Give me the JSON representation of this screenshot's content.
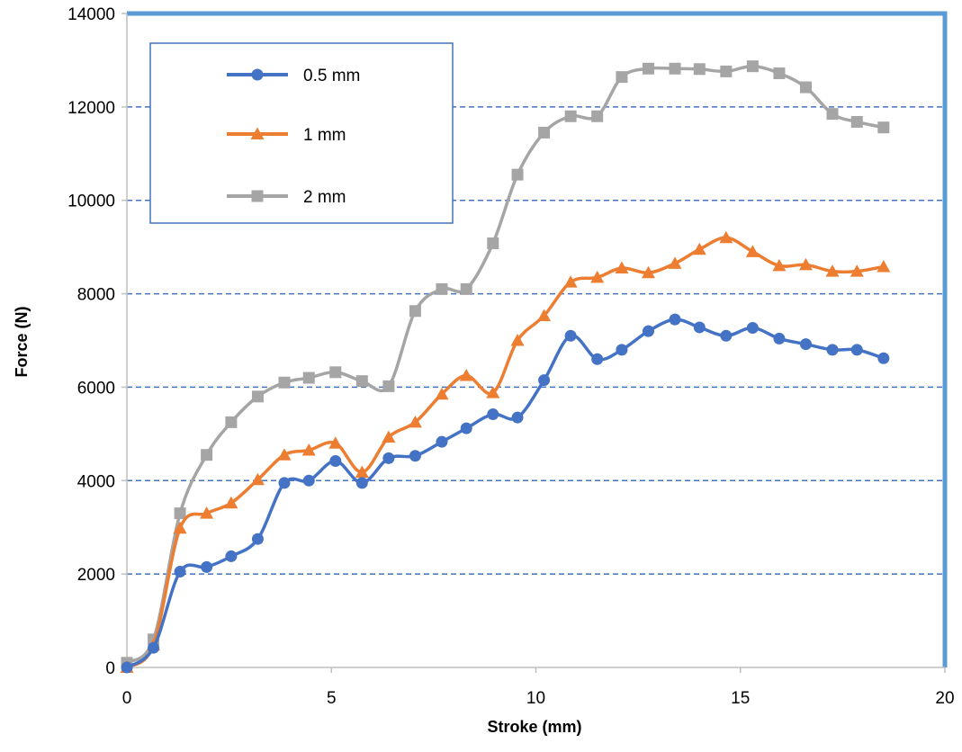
{
  "chart_data": {
    "type": "line",
    "title": "",
    "xlabel": "Stroke (mm)",
    "ylabel": "Force (N)",
    "xlim": [
      0,
      20
    ],
    "ylim": [
      0,
      14000
    ],
    "x_ticks": [
      0,
      5,
      10,
      15,
      20
    ],
    "y_ticks": [
      0,
      2000,
      4000,
      6000,
      8000,
      10000,
      12000,
      14000
    ],
    "grid": "horizontal dashed",
    "legend": "top-left",
    "series": [
      {
        "name": "0.5 mm",
        "color": "#4472C4",
        "marker": "circle",
        "x": [
          0.0,
          0.65,
          1.3,
          1.95,
          2.55,
          3.2,
          3.85,
          4.45,
          5.1,
          5.75,
          6.4,
          7.05,
          7.7,
          8.3,
          8.95,
          9.55,
          10.2,
          10.85,
          11.5,
          12.1,
          12.75,
          13.4,
          14.0,
          14.65,
          15.3,
          15.95,
          16.6,
          17.25,
          17.85,
          18.5
        ],
        "values": [
          0,
          420,
          2050,
          2150,
          2380,
          2750,
          3950,
          4000,
          4420,
          3950,
          4480,
          4530,
          4830,
          5120,
          5420,
          5350,
          6150,
          7100,
          6600,
          6800,
          7200,
          7450,
          7280,
          7100,
          7270,
          7040,
          6920,
          6800,
          6800,
          6620
        ]
      },
      {
        "name": "1 mm",
        "color": "#ED7D31",
        "marker": "triangle",
        "x": [
          0.0,
          0.65,
          1.3,
          1.95,
          2.55,
          3.2,
          3.85,
          4.45,
          5.1,
          5.75,
          6.4,
          7.05,
          7.7,
          8.3,
          8.95,
          9.55,
          10.2,
          10.85,
          11.5,
          12.1,
          12.75,
          13.4,
          14.0,
          14.65,
          15.3,
          15.95,
          16.6,
          17.25,
          17.85,
          18.5
        ],
        "values": [
          0,
          480,
          2980,
          3300,
          3520,
          4020,
          4550,
          4650,
          4800,
          4180,
          4930,
          5250,
          5850,
          6250,
          5880,
          7000,
          7530,
          8250,
          8350,
          8550,
          8450,
          8650,
          8950,
          9200,
          8900,
          8600,
          8620,
          8480,
          8480,
          8580
        ]
      },
      {
        "name": "2 mm",
        "color": "#A5A5A5",
        "marker": "square",
        "x": [
          0.0,
          0.65,
          1.3,
          1.95,
          2.55,
          3.2,
          3.85,
          4.45,
          5.1,
          5.75,
          6.4,
          7.05,
          7.7,
          8.3,
          8.95,
          9.55,
          10.2,
          10.85,
          11.5,
          12.1,
          12.75,
          13.4,
          14.0,
          14.65,
          15.3,
          15.95,
          16.6,
          17.25,
          17.85,
          18.5
        ],
        "values": [
          100,
          600,
          3300,
          4550,
          5250,
          5800,
          6100,
          6200,
          6320,
          6130,
          6020,
          7630,
          8100,
          8100,
          9080,
          10550,
          11450,
          11800,
          11800,
          12640,
          12820,
          12820,
          12810,
          12760,
          12870,
          12720,
          12420,
          11850,
          11680,
          11560
        ]
      }
    ]
  }
}
